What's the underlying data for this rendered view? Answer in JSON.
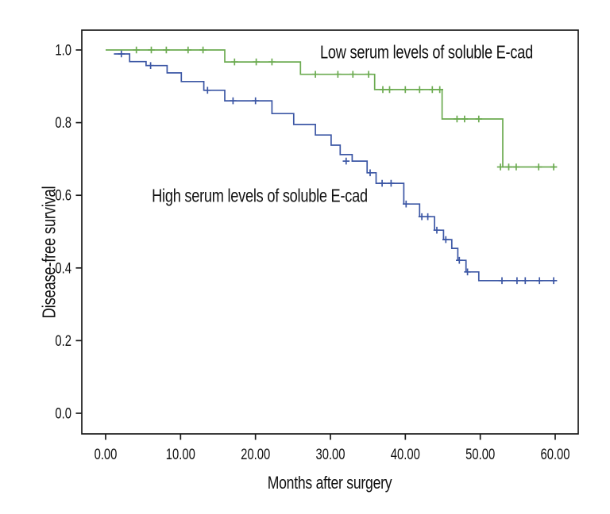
{
  "figure": {
    "background": "#ffffff",
    "axis_color": "#1a1a1a",
    "text_color": "#111111"
  },
  "chart_data": {
    "type": "line",
    "subtype": "kaplan-meier-step-curves",
    "title": "",
    "xlabel": "Months after surgery",
    "ylabel": "Disease-free survival",
    "xlim": [
      0,
      60
    ],
    "ylim": [
      0.0,
      1.0
    ],
    "grid": false,
    "legend_position": "inline-annotations",
    "x_ticks": {
      "values": [
        0,
        10,
        20,
        30,
        40,
        50,
        60
      ],
      "labels": [
        "0.00",
        "10.00",
        "20.00",
        "30.00",
        "40.00",
        "50.00",
        "60.00"
      ]
    },
    "y_ticks": {
      "values": [
        0.0,
        0.2,
        0.4,
        0.6,
        0.8,
        1.0
      ],
      "labels": [
        "0.0",
        "0.2",
        "0.4",
        "0.6",
        "0.8",
        "1.0"
      ]
    },
    "series": [
      {
        "name": "Low serum levels of soluble E-cad",
        "color": "#6cab51",
        "start": [
          0.0,
          1.0
        ],
        "steps": [
          [
            15.9,
            0.967
          ],
          [
            26.0,
            0.933
          ],
          [
            35.9,
            0.891
          ],
          [
            44.9,
            0.81
          ],
          [
            53.0,
            0.678
          ]
        ],
        "end_x": 60,
        "censors": [
          [
            4.1,
            1.0
          ],
          [
            6.1,
            1.0
          ],
          [
            8.1,
            1.0
          ],
          [
            11.0,
            1.0
          ],
          [
            13.0,
            1.0
          ],
          [
            17.2,
            0.967
          ],
          [
            20.1,
            0.967
          ],
          [
            22.2,
            0.967
          ],
          [
            28.0,
            0.933
          ],
          [
            31.0,
            0.933
          ],
          [
            33.0,
            0.933
          ],
          [
            35.1,
            0.933
          ],
          [
            37.0,
            0.891
          ],
          [
            37.9,
            0.891
          ],
          [
            40.0,
            0.891
          ],
          [
            41.9,
            0.891
          ],
          [
            43.6,
            0.891
          ],
          [
            44.6,
            0.891
          ],
          [
            46.9,
            0.81
          ],
          [
            47.9,
            0.81
          ],
          [
            49.8,
            0.81
          ],
          [
            52.7,
            0.678
          ],
          [
            53.8,
            0.678
          ],
          [
            54.8,
            0.678
          ],
          [
            57.8,
            0.678
          ],
          [
            59.8,
            0.678
          ]
        ]
      },
      {
        "name": "High serum levels of soluble E-cad",
        "color": "#3c57a5",
        "start": [
          1.1,
          0.989
        ],
        "steps": [
          [
            3.2,
            0.968
          ],
          [
            5.4,
            0.957
          ],
          [
            8.2,
            0.937
          ],
          [
            10.1,
            0.913
          ],
          [
            13.1,
            0.889
          ],
          [
            15.9,
            0.86
          ],
          [
            22.2,
            0.825
          ],
          [
            25.1,
            0.795
          ],
          [
            28.0,
            0.766
          ],
          [
            30.1,
            0.738
          ],
          [
            31.3,
            0.712
          ],
          [
            32.9,
            0.694
          ],
          [
            34.9,
            0.662
          ],
          [
            36.1,
            0.633
          ],
          [
            39.8,
            0.576
          ],
          [
            41.9,
            0.541
          ],
          [
            43.9,
            0.504
          ],
          [
            45.1,
            0.478
          ],
          [
            46.2,
            0.454
          ],
          [
            47.0,
            0.421
          ],
          [
            48.1,
            0.389
          ],
          [
            49.8,
            0.365
          ]
        ],
        "end_x": 60,
        "censors": [
          [
            2.1,
            0.989
          ],
          [
            6.0,
            0.957
          ],
          [
            13.6,
            0.889
          ],
          [
            17.0,
            0.86
          ],
          [
            20.0,
            0.86
          ],
          [
            32.1,
            0.694
          ],
          [
            35.3,
            0.662
          ],
          [
            36.9,
            0.633
          ],
          [
            38.1,
            0.633
          ],
          [
            40.1,
            0.576
          ],
          [
            42.2,
            0.541
          ],
          [
            43.0,
            0.541
          ],
          [
            44.2,
            0.504
          ],
          [
            45.4,
            0.478
          ],
          [
            47.2,
            0.421
          ],
          [
            48.3,
            0.389
          ],
          [
            52.9,
            0.365
          ],
          [
            54.9,
            0.365
          ],
          [
            56.0,
            0.365
          ],
          [
            57.9,
            0.365
          ],
          [
            59.8,
            0.365
          ]
        ]
      }
    ],
    "annotations": [
      {
        "text": "Low serum levels of soluble E-cad",
        "color": "#111111",
        "x": 42.8,
        "y": 0.993
      },
      {
        "text": "High serum levels of soluble E-cad",
        "color": "#111111",
        "x": 20.6,
        "y": 0.598
      }
    ]
  }
}
